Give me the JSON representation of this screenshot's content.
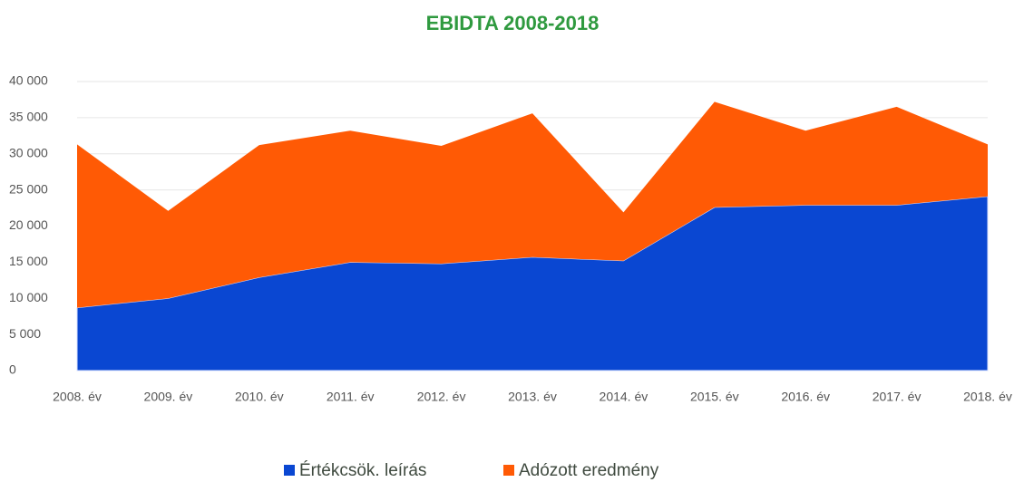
{
  "chart_data": {
    "type": "stacked_area",
    "title": "EBIDTA 2008-2018",
    "categories": [
      "2008. év",
      "2009. év",
      "2010. év",
      "2011. év",
      "2012. év",
      "2013. év",
      "2014. év",
      "2015. év",
      "2016. év",
      "2017. év",
      "2018. év"
    ],
    "series": [
      {
        "name": "Értékcsök. leírás",
        "color": "#0a47d2",
        "values": [
          8700,
          10000,
          12900,
          15000,
          14800,
          15700,
          15200,
          22600,
          22900,
          22900,
          24100
        ]
      },
      {
        "name": "Adózott eredmény",
        "color": "#ff5a05",
        "values": [
          22600,
          12100,
          18300,
          18200,
          16300,
          19900,
          6700,
          14600,
          10300,
          13600,
          7200
        ]
      }
    ],
    "ylim": [
      0,
      40000
    ],
    "yticks": [
      0,
      {
        "value": 5000,
        "label": "5 000"
      },
      {
        "value": 10000,
        "label": "10 000"
      },
      {
        "value": 15000,
        "label": "15 000"
      },
      {
        "value": 20000,
        "label": "20 000"
      },
      {
        "value": 25000,
        "label": "25 000"
      },
      {
        "value": 30000,
        "label": "30 000"
      },
      {
        "value": 35000,
        "label": "35 000"
      },
      {
        "value": 40000,
        "label": "40 000"
      }
    ],
    "grid": true,
    "legend": "bottom"
  }
}
